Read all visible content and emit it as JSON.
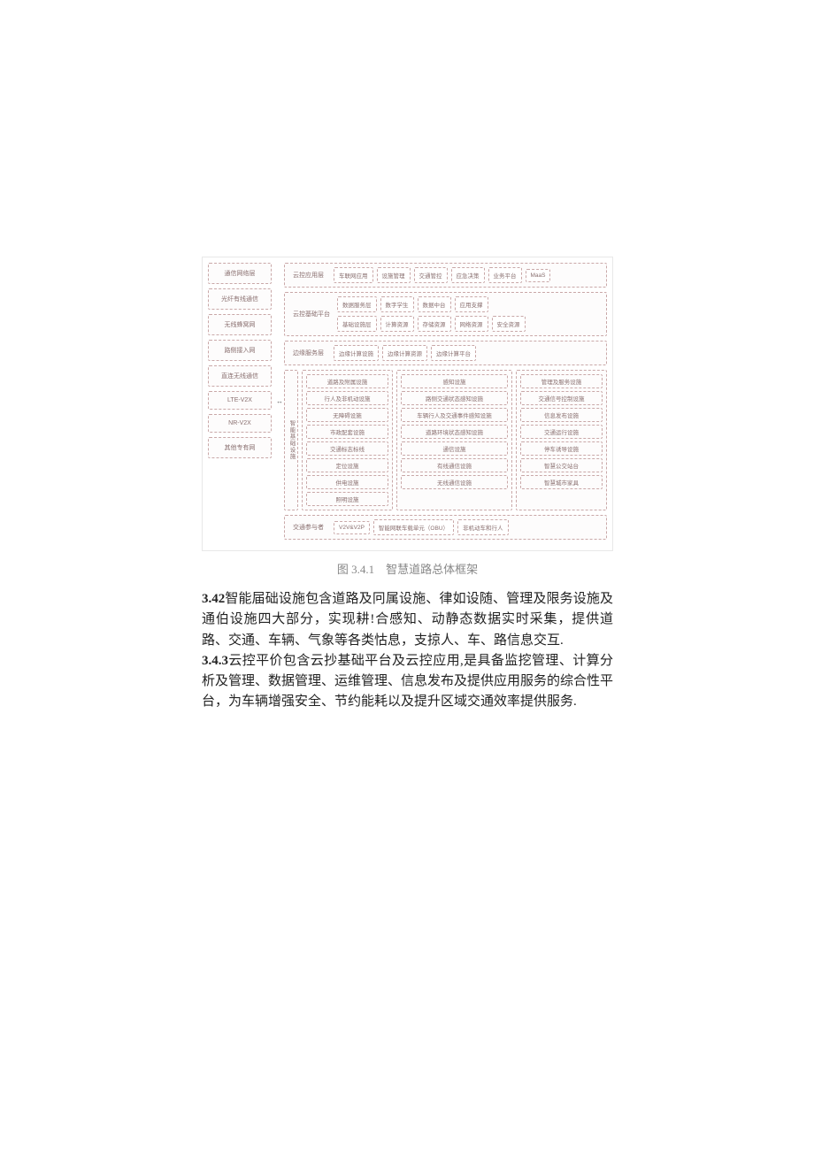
{
  "colors": {
    "page_bg": "#ffffff",
    "text": "#333333",
    "caption": "#888888",
    "box_border": "#c9a8a8",
    "box_bg": "#fdfcfc",
    "box_text": "#8a7070"
  },
  "diagram": {
    "left_column": {
      "items": [
        "通信网络层",
        "光纤有线通信",
        "无线蜂窝网",
        "路侧接入网",
        "直连无线通信",
        "LTE-V2X",
        "NR-V2X",
        "其他专有网"
      ]
    },
    "layers": [
      {
        "label": "云控应用层",
        "cells": [
          "车联网应用",
          "设施管理",
          "交通管控",
          "应急决策",
          "业务平台",
          "MaaS"
        ]
      },
      {
        "label": "云控基础平台",
        "rows": [
          [
            "数据服务层",
            "数字学生",
            "数据中台",
            "应用支撑"
          ],
          [
            "基础设施层",
            "计算资源",
            "存储资源",
            "网络资源",
            "安全资源"
          ]
        ]
      },
      {
        "label": "边缘服务层",
        "cells": [
          "边缘计算设施",
          "边缘计算资源",
          "边缘计算平台"
        ]
      }
    ],
    "infrastructure": {
      "label": "智能基础设施",
      "columns": [
        {
          "title": "道路及附属设施",
          "items": [
            "行人及非机动设施",
            "无障碍设施",
            "市政配套设施",
            "交通标志标线",
            "定位设施",
            "供电设施",
            "照明设施"
          ]
        },
        {
          "title": "感知设施",
          "items": [
            "路侧交通状态感知设施",
            "车辆行人及交通事件感知设施",
            "道路环境状态感知设施"
          ],
          "subgroup_title": "通信设施",
          "subgroup_items": [
            "有线通信设施",
            "无线通信设施"
          ]
        },
        {
          "title": "管理及服务设施",
          "items": [
            "交通信号控制设施",
            "信息发布设施",
            "交通运行设施",
            "停车诱导设施",
            "智慧公交站台",
            "智慧城市家具"
          ]
        }
      ]
    },
    "participants": {
      "label": "交通参与者",
      "cells": [
        "V2V&V2P",
        "智能网联车载单元（OBU）",
        "非机动车和行人"
      ]
    }
  },
  "caption": "图 3.4.1　智慧道路总体框架",
  "paragraphs": [
    {
      "num": "3.42",
      "text": "智能届础设施包含道路及冋属设施、律如设随、管理及限务设施及通伯设施四大部分，实现耕!合感知、动静态数据实时采集，提供道路、交通、车辆、气象等各类怙息，支掠人、车、路信息交互."
    },
    {
      "num": "3.4.3",
      "text": "云控平价包含云抄基础平台及云控应用,是具备监挖管理、计算分析及管理、数据管理、运维管理、信息发布及提供应用服务的综合性平台，为车辆增强安全、节约能耗以及提升区域交通效率提供服务."
    }
  ]
}
